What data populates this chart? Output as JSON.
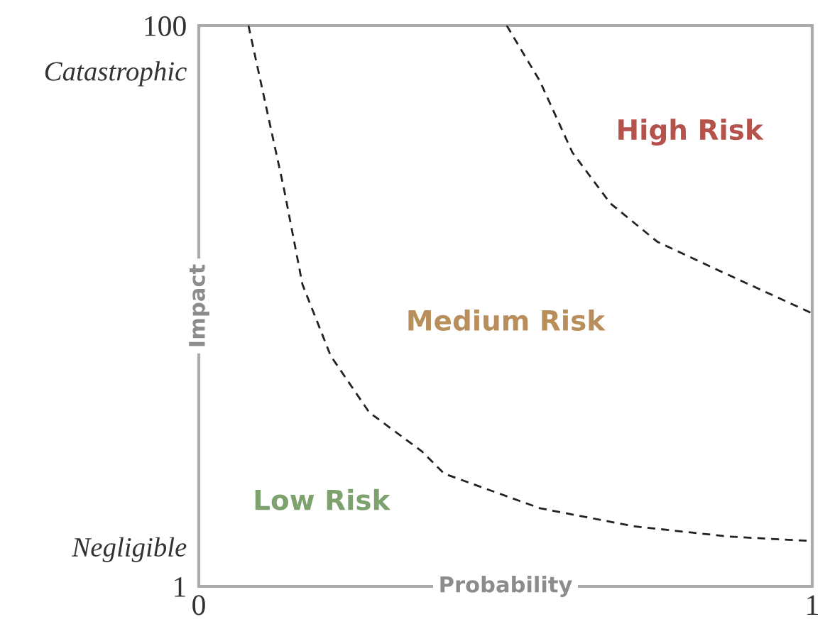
{
  "chart_data": {
    "type": "line",
    "xlabel": "Probability",
    "ylabel": "Impact",
    "xlim": [
      0,
      1
    ],
    "ylim": [
      1,
      100
    ],
    "xticks": [
      0,
      1
    ],
    "yticks": [
      1,
      {
        "value": 8,
        "label": "Negligible"
      },
      {
        "value": 92,
        "label": "Catastrophic"
      },
      100
    ],
    "line_style": "dashed",
    "marker": "none",
    "grid": false,
    "legend": false,
    "series": [
      {
        "color": "#222222",
        "x": [
          0.081,
          0.139,
          0.169,
          0.215,
          0.278,
          0.363,
          0.4,
          0.556,
          0.71,
          0.864,
          1.0
        ],
        "values": [
          100,
          71.1,
          54.3,
          41.7,
          31.7,
          24.9,
          20.9,
          14.8,
          11.6,
          9.8,
          9.0
        ]
      },
      {
        "color": "#222222",
        "x": [
          0.502,
          0.556,
          0.609,
          0.671,
          0.748,
          0.863,
          1.0
        ],
        "values": [
          100,
          90.2,
          77.6,
          68.6,
          61.8,
          56.0,
          49.2
        ]
      }
    ],
    "annotations": [
      "High Risk",
      "Medium Risk",
      "Low Risk"
    ]
  }
}
